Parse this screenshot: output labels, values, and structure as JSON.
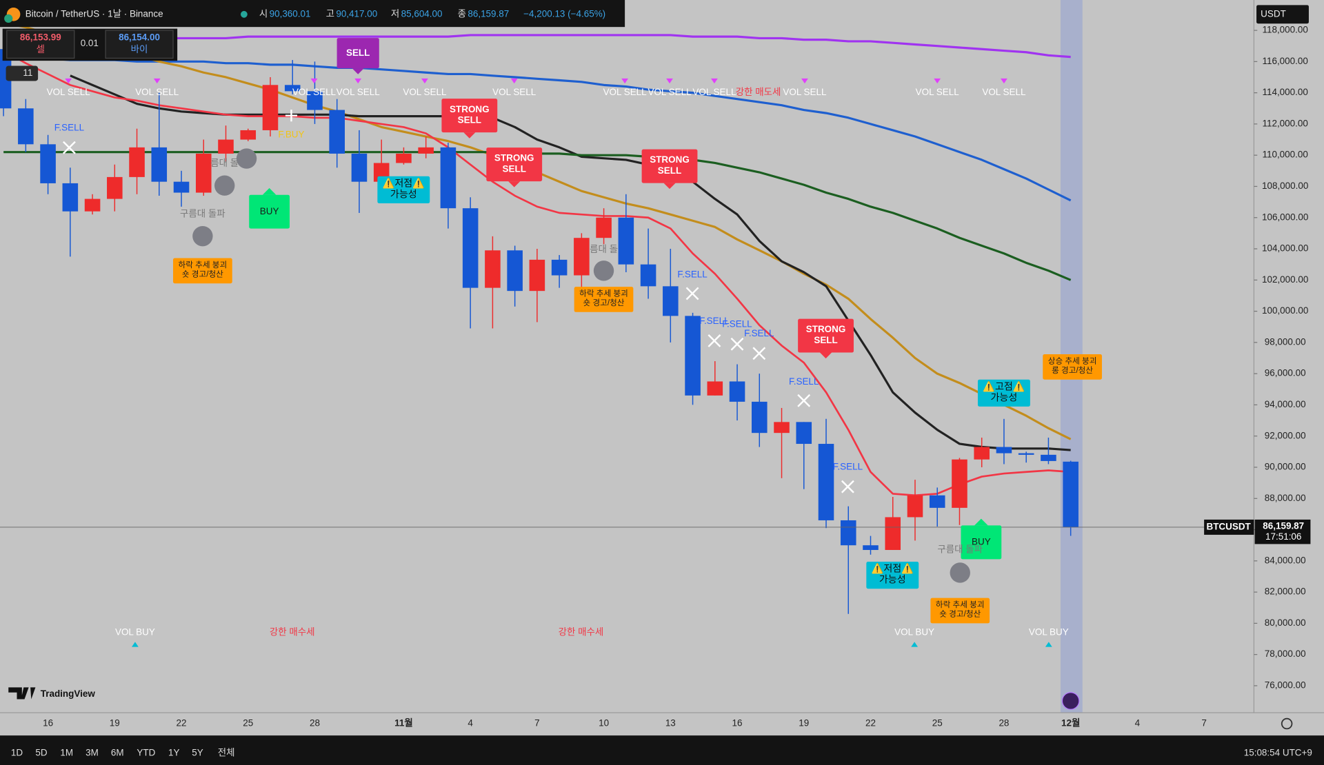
{
  "header": {
    "symbol": "Bitcoin / TetherUS · 1날 · Binance",
    "open_label": "시",
    "open": "90,360.01",
    "high_label": "고",
    "high": "90,417.00",
    "low_label": "저",
    "low": "85,604.00",
    "close_label": "종",
    "close": "86,159.87",
    "change": "−4,200.13 (−4.65%)"
  },
  "order_panel": {
    "sell_price": "86,153.99",
    "sell_label": "셀",
    "qty": "0.01",
    "buy_price": "86,154.00",
    "buy_label": "바이",
    "indicator_count": "11"
  },
  "currency": "USDT",
  "logo": "TradingView",
  "bottom_bar": {
    "ranges": [
      "1D",
      "5D",
      "1M",
      "3M",
      "6M",
      "YTD",
      "1Y",
      "5Y",
      "전체"
    ],
    "clock": "15:08:54 UTC+9"
  },
  "chart_data": {
    "type": "candlestick",
    "categories": [
      null,
      null,
      "16",
      null,
      null,
      "19",
      null,
      null,
      "22",
      null,
      null,
      "25",
      null,
      null,
      "28",
      null,
      null,
      null,
      "11월",
      null,
      null,
      "4",
      null,
      null,
      "7",
      null,
      null,
      "10",
      null,
      null,
      "13",
      null,
      null,
      "16",
      null,
      null,
      "19",
      null,
      null,
      "22",
      null,
      null,
      "25",
      null,
      null,
      "28",
      null,
      null,
      "12월",
      null,
      null,
      "4",
      null,
      null,
      "7",
      null,
      null
    ],
    "open": [
      116800,
      113000,
      110700,
      108200,
      106400,
      107200,
      108600,
      110500,
      108300,
      107600,
      110100,
      111000,
      111600,
      114500,
      114100,
      112900,
      110100,
      108300,
      109500,
      110100,
      110500,
      106600,
      101500,
      103900,
      101300,
      103300,
      102300,
      104700,
      106000,
      103000,
      101600,
      99700,
      94600,
      95500,
      94200,
      92200,
      92900,
      91500,
      86600,
      85000,
      84700,
      86800,
      88200,
      87400,
      90500,
      91300,
      90900,
      90800,
      90360.01,
      null,
      null,
      null,
      null,
      null,
      null,
      null,
      null
    ],
    "high": [
      117300,
      113600,
      111300,
      109200,
      107500,
      109400,
      111700,
      114000,
      109000,
      111000,
      111900,
      111700,
      115000,
      116100,
      116000,
      113600,
      111600,
      111000,
      110500,
      111200,
      110800,
      107300,
      104800,
      104200,
      104000,
      103600,
      105000,
      106600,
      107500,
      105300,
      104000,
      99900,
      96800,
      96600,
      96000,
      93800,
      92900,
      93100,
      87500,
      85600,
      88100,
      89200,
      88700,
      90600,
      91900,
      93100,
      91000,
      91900,
      90417,
      null,
      null,
      null,
      null,
      null,
      null,
      null,
      null
    ],
    "low": [
      112500,
      110200,
      107500,
      103500,
      106200,
      106400,
      107500,
      107400,
      106700,
      107400,
      109600,
      110900,
      111200,
      113900,
      112000,
      109200,
      106300,
      108000,
      109400,
      109800,
      105300,
      98900,
      98900,
      100300,
      99300,
      101500,
      101400,
      104300,
      102500,
      100800,
      98000,
      94000,
      94600,
      93000,
      91300,
      89300,
      88600,
      86100,
      80600,
      84400,
      84700,
      85300,
      86200,
      86300,
      90000,
      90200,
      90300,
      90200,
      85604,
      null,
      null,
      null,
      null,
      null,
      null,
      null,
      null
    ],
    "close": [
      113000,
      110700,
      108200,
      106400,
      107200,
      108600,
      110500,
      108300,
      107600,
      110100,
      111000,
      111600,
      114500,
      114100,
      112900,
      110100,
      108300,
      109500,
      110100,
      110500,
      106600,
      101500,
      103900,
      101300,
      103300,
      102300,
      104700,
      106000,
      103000,
      101600,
      99700,
      94600,
      95500,
      94200,
      92200,
      92900,
      91500,
      86600,
      85000,
      84700,
      86800,
      88200,
      87400,
      90500,
      91300,
      90900,
      90800,
      90400,
      86159.87,
      null,
      null,
      null,
      null,
      null,
      null,
      null,
      null
    ],
    "up_color": "#ee2b2b",
    "down_color": "#1557d4",
    "indicators": [
      {
        "color": "#a033f0",
        "values": [
          117200,
          117300,
          117300,
          117400,
          117400,
          117400,
          117500,
          117500,
          117500,
          117500,
          117500,
          117600,
          117600,
          117600,
          117600,
          117600,
          117600,
          117600,
          117600,
          117600,
          117600,
          117700,
          117700,
          117700,
          117700,
          117700,
          117700,
          117700,
          117700,
          117700,
          117700,
          117600,
          117600,
          117600,
          117500,
          117500,
          117400,
          117400,
          117300,
          117300,
          117200,
          117100,
          117000,
          116900,
          116800,
          116700,
          116600,
          116400,
          116300,
          null,
          null,
          null,
          null,
          null,
          null,
          null,
          null
        ]
      },
      {
        "color": "#1e5fcf",
        "values": [
          116300,
          116200,
          116200,
          116100,
          116100,
          116100,
          116000,
          116000,
          116000,
          116000,
          115900,
          115900,
          115800,
          115800,
          115700,
          115600,
          115600,
          115500,
          115400,
          115300,
          115200,
          115200,
          115100,
          115000,
          114900,
          114800,
          114700,
          114500,
          114400,
          114200,
          114100,
          114000,
          113800,
          113600,
          113400,
          113200,
          112900,
          112700,
          112400,
          112000,
          111600,
          111200,
          110700,
          110200,
          109700,
          109100,
          108500,
          107800,
          107100,
          null,
          null,
          null,
          null,
          null,
          null,
          null,
          null
        ]
      },
      {
        "color": "#c38d1c",
        "values": [
          118500,
          118200,
          117800,
          117400,
          117200,
          116700,
          116400,
          116000,
          115700,
          115300,
          115000,
          114600,
          114200,
          113700,
          113200,
          112800,
          112300,
          111800,
          111500,
          111200,
          110900,
          110500,
          110000,
          109400,
          108900,
          108300,
          107700,
          107300,
          106900,
          106600,
          106200,
          105800,
          105400,
          104600,
          103900,
          103200,
          102400,
          101700,
          100800,
          99500,
          98300,
          97000,
          96000,
          95400,
          94700,
          94000,
          93300,
          92500,
          91800,
          null,
          null,
          null,
          null,
          null,
          null,
          null,
          null
        ]
      },
      {
        "color": "#222222",
        "values": [
          null,
          null,
          null,
          115100,
          114500,
          113900,
          113300,
          113000,
          112800,
          112700,
          112600,
          112600,
          112600,
          112600,
          112600,
          112600,
          112500,
          112500,
          112500,
          112500,
          112500,
          112400,
          112400,
          111800,
          111000,
          110500,
          109900,
          109800,
          109700,
          109400,
          109100,
          108300,
          107200,
          106200,
          104500,
          103200,
          102500,
          101600,
          99400,
          97200,
          94800,
          93500,
          92400,
          91500,
          91300,
          91200,
          91200,
          91200,
          91100,
          null,
          null,
          null,
          null,
          null,
          null,
          null,
          null
        ]
      },
      {
        "color": "#1b5e20",
        "values": [
          110200,
          110200,
          110200,
          110200,
          110200,
          110200,
          110200,
          110200,
          110200,
          110200,
          110200,
          110200,
          110200,
          110200,
          110200,
          110200,
          110200,
          110200,
          110200,
          110200,
          110200,
          110200,
          110200,
          110200,
          110100,
          110100,
          110000,
          110000,
          110000,
          109900,
          109800,
          109700,
          109500,
          109200,
          108900,
          108500,
          108100,
          107600,
          107200,
          106700,
          106300,
          105800,
          105300,
          104700,
          104200,
          103700,
          103100,
          102600,
          102000,
          null,
          null,
          null,
          null,
          null,
          null,
          null,
          null
        ]
      },
      {
        "color": "#f23645",
        "values": [
          116700,
          115900,
          115200,
          114500,
          114100,
          113700,
          113500,
          113200,
          113000,
          112800,
          112600,
          112500,
          112500,
          112500,
          112400,
          112400,
          112200,
          112000,
          111800,
          111400,
          110500,
          109400,
          108300,
          107400,
          106700,
          106300,
          106200,
          106100,
          106100,
          106000,
          105300,
          103700,
          102400,
          100800,
          99100,
          97800,
          96700,
          94800,
          92400,
          89700,
          88300,
          88200,
          88300,
          88900,
          89400,
          89600,
          89700,
          89800,
          89700,
          null,
          null,
          null,
          null,
          null,
          null,
          null,
          null
        ]
      }
    ],
    "ylim": [
      74270,
      119946
    ],
    "yticks": [
      {
        "value": 76000,
        "label": "76,000.00"
      },
      {
        "value": 78000,
        "label": "78,000.00"
      },
      {
        "value": 80000,
        "label": "80,000.00"
      },
      {
        "value": 82000,
        "label": "82,000.00"
      },
      {
        "value": 84000,
        "label": "84,000.00"
      },
      {
        "value": 86000,
        "label": "86,000.00"
      },
      {
        "value": 88000,
        "label": "88,000.00"
      },
      {
        "value": 90000,
        "label": "90,000.00"
      },
      {
        "value": 92000,
        "label": "92,000.00"
      },
      {
        "value": 94000,
        "label": "94,000.00"
      },
      {
        "value": 96000,
        "label": "96,000.00"
      },
      {
        "value": 98000,
        "label": "98,000.00"
      },
      {
        "value": 100000,
        "label": "100,000.00"
      },
      {
        "value": 102000,
        "label": "102,000.00"
      },
      {
        "value": 104000,
        "label": "104,000.00"
      },
      {
        "value": 106000,
        "label": "106,000.00"
      },
      {
        "value": 108000,
        "label": "108,000.00"
      },
      {
        "value": 110000,
        "label": "110,000.00"
      },
      {
        "value": 112000,
        "label": "112,000.00"
      },
      {
        "value": 114000,
        "label": "114,000.00"
      },
      {
        "value": 116000,
        "label": "116,000.00"
      },
      {
        "value": 118000,
        "label": "118,000.00"
      }
    ],
    "grid": false,
    "last_price": {
      "value": 86159.87,
      "label": "86,159.87",
      "symbol": "BTCUSDT",
      "countdown": "17:51:06"
    },
    "annotations": [
      "VOL SELL",
      "VOL SELL",
      "VOL SELL",
      "VOL SELL",
      "VOL SELL",
      "VOL SELL",
      "VOL SELL",
      "VOL SELL",
      "VOL SELL",
      "VOL SELL",
      "VOL SELL",
      "VOL SELL",
      "강한 매도세",
      "VOL BUY",
      "VOL BUY",
      "VOL BUY",
      "강한 매수세",
      "강한 매수세",
      "STRONG SELL",
      "STRONG SELL",
      "STRONG SELL",
      "STRONG SELL",
      "BUY",
      "BUY",
      "SELL",
      "하락 추세 붕괴 숏 경고/청산",
      "하락 추세 붕괴 숏 경고/청산",
      "하락 추세 붕괴 숏 경고/청산",
      "상승 추세 붕괴 롱 경고/청산",
      "⚠️저점⚠️ 가능성",
      "⚠️저점⚠️ 가능성",
      "⚠️고점⚠️ 가능성",
      "F.SELL",
      "F.SELL",
      "F.SELL",
      "F.SELL",
      "F.SELL",
      "F.SELL",
      "F.SELL",
      "F.BUY",
      "구름대 돌파",
      "구름대 돌파",
      "름대 돌",
      "름대 돌"
    ]
  }
}
